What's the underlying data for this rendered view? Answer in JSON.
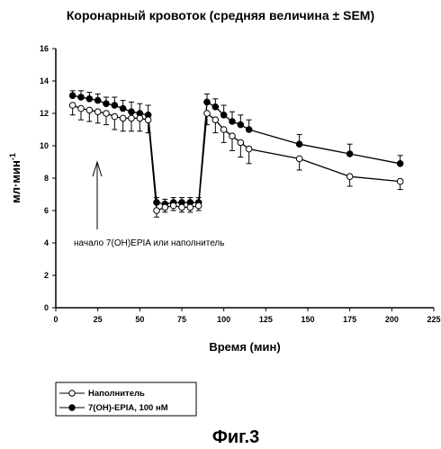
{
  "chart_data": {
    "type": "line",
    "title": "Коронарный кровоток (средняя величина ± SEM)",
    "xlabel": "Время (мин)",
    "ylabel": "мл·мин",
    "ylabel_sup": "-1",
    "xlim": [
      0,
      225
    ],
    "ylim": [
      0,
      16
    ],
    "xticks": [
      "0",
      "25",
      "50",
      "75",
      "100",
      "125",
      "150",
      "175",
      "200",
      "225"
    ],
    "yticks": [
      "0",
      "2",
      "4",
      "6",
      "8",
      "10",
      "12",
      "14",
      "16"
    ],
    "grid": false,
    "legend_position": "bottom-left",
    "annotation": "начало 7(OH)EPIA или наполнитель",
    "series": [
      {
        "name": "Наполнитель",
        "marker": "open-circle",
        "x": [
          10,
          15,
          20,
          25,
          30,
          35,
          40,
          45,
          50,
          55,
          60,
          65,
          70,
          75,
          80,
          85,
          90,
          95,
          100,
          105,
          110,
          115,
          145,
          175,
          205
        ],
        "y": [
          12.5,
          12.3,
          12.2,
          12.1,
          12.0,
          11.8,
          11.7,
          11.7,
          11.7,
          11.6,
          6.0,
          6.2,
          6.3,
          6.2,
          6.2,
          6.3,
          12.0,
          11.6,
          11.0,
          10.6,
          10.2,
          9.8,
          9.2,
          8.1,
          7.8
        ],
        "err": [
          0.6,
          0.7,
          0.7,
          0.7,
          0.7,
          0.8,
          0.8,
          0.8,
          0.8,
          0.8,
          0.4,
          0.3,
          0.3,
          0.3,
          0.3,
          0.3,
          0.7,
          0.8,
          0.8,
          0.9,
          0.9,
          0.9,
          0.7,
          0.6,
          0.5
        ]
      },
      {
        "name": "7(OH)-EPIA, 100 нM",
        "marker": "filled-circle",
        "x": [
          10,
          15,
          20,
          25,
          30,
          35,
          40,
          45,
          50,
          55,
          60,
          65,
          70,
          75,
          80,
          85,
          90,
          95,
          100,
          105,
          110,
          115,
          145,
          175,
          205
        ],
        "y": [
          13.1,
          13.0,
          12.9,
          12.8,
          12.6,
          12.5,
          12.3,
          12.1,
          12.0,
          11.9,
          6.5,
          6.4,
          6.5,
          6.5,
          6.5,
          6.5,
          12.7,
          12.4,
          11.9,
          11.5,
          11.3,
          11.0,
          10.1,
          9.5,
          8.9
        ],
        "err": [
          0.3,
          0.4,
          0.4,
          0.4,
          0.4,
          0.5,
          0.5,
          0.6,
          0.6,
          0.6,
          0.3,
          0.3,
          0.3,
          0.3,
          0.3,
          0.3,
          0.5,
          0.5,
          0.6,
          0.6,
          0.6,
          0.6,
          0.6,
          0.6,
          0.5
        ]
      }
    ]
  },
  "caption": "Фиг.3"
}
